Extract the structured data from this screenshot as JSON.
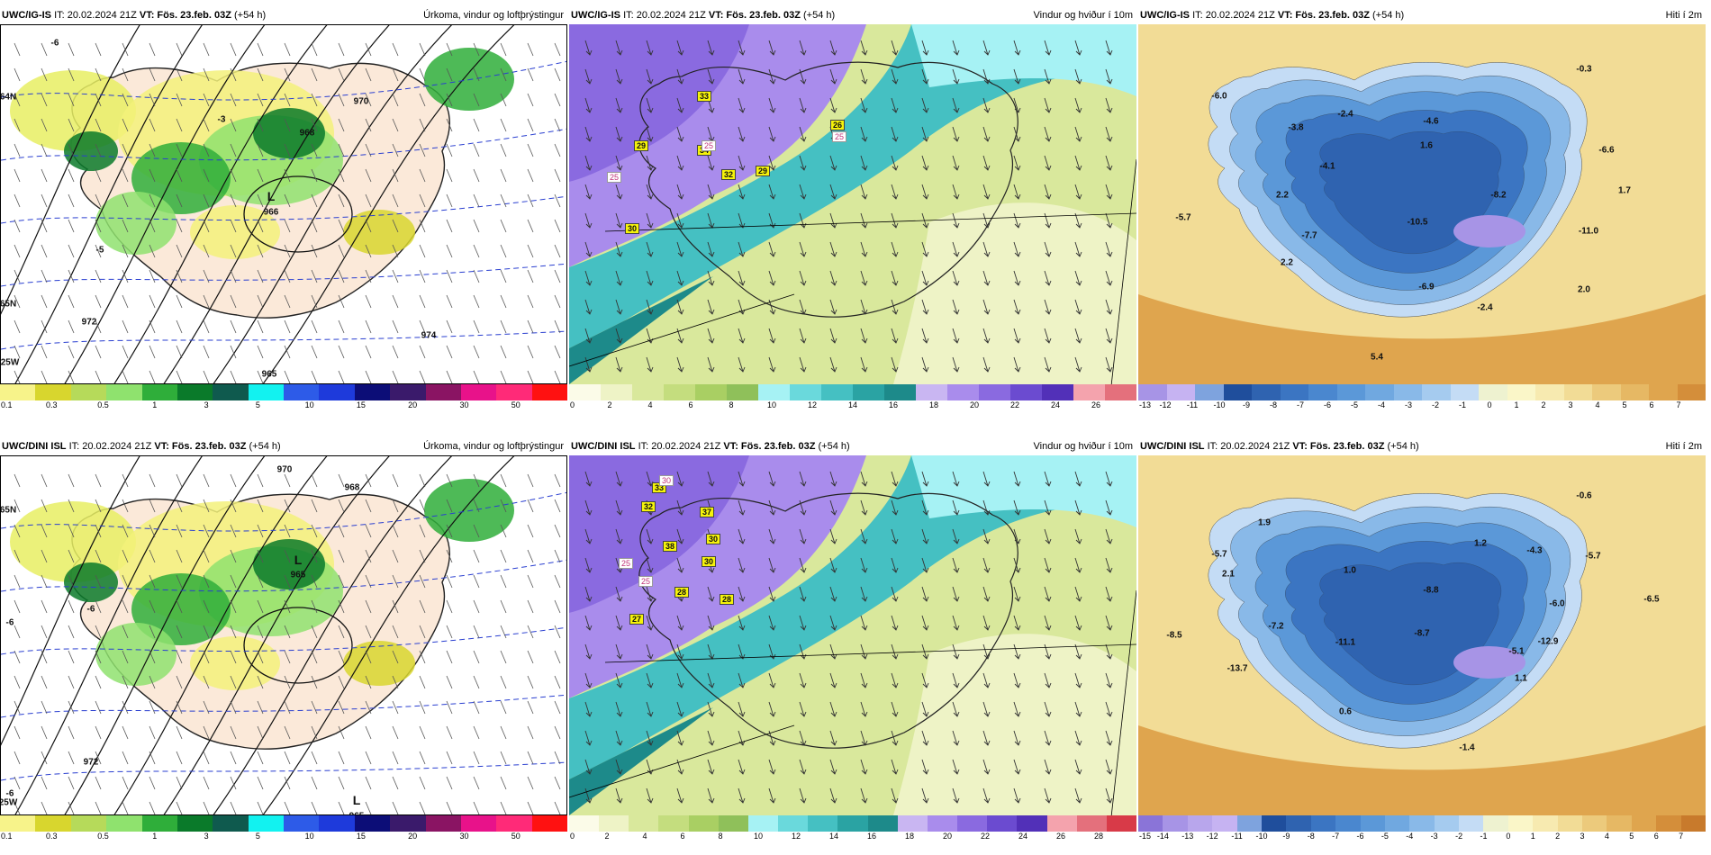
{
  "rows": [
    {
      "panels": [
        {
          "kind": "precip",
          "model": "UWC/IG-IS",
          "issue": "IT: 20.02.2024 21Z",
          "valid": "VT: Fös. 23.feb. 03Z",
          "lead": "(+54 h)",
          "title": "Úrkoma, vindur og loftþrýstingur",
          "colors": [
            "#f7f38a",
            "#d8d62e",
            "#b6da5a",
            "#8fe26e",
            "#2fae3a",
            "#0a7a2a",
            "#0f5a4e",
            "#12f2f0",
            "#2d5be8",
            "#1e3adb",
            "#0c0d77",
            "#3a1a6b",
            "#8a1463",
            "#e8128a",
            "#ff2a78",
            "#ff1111"
          ],
          "ticks": [
            "0.1",
            "0.3",
            "0.5",
            "1",
            "3",
            "5",
            "10",
            "15",
            "20",
            "30",
            "50"
          ],
          "labels": [
            {
              "text": "L",
              "cls": "low"
            },
            {
              "text": "966"
            },
            {
              "text": "965"
            },
            {
              "text": "968"
            },
            {
              "text": "970"
            },
            {
              "text": "972"
            },
            {
              "text": "974"
            },
            {
              "text": "-5"
            },
            {
              "text": "-6"
            },
            {
              "text": "-3"
            },
            {
              "text": "64N"
            },
            {
              "text": "65N"
            },
            {
              "text": "25W"
            }
          ]
        },
        {
          "kind": "wind",
          "model": "UWC/IG-IS",
          "issue": "IT: 20.02.2024 21Z",
          "valid": "VT: Fös. 23.feb. 03Z",
          "lead": "(+54 h)",
          "title": "Vindur og hviður í 10m",
          "colors": [
            "#fbfbe8",
            "#eef3c6",
            "#d9e89c",
            "#c4dd7e",
            "#a9cf63",
            "#8fc05a",
            "#a6f2f4",
            "#6ad9dc",
            "#45c0c2",
            "#2aa3a3",
            "#1d8a8a",
            "#c9b6f2",
            "#a98cec",
            "#8a6ae0",
            "#6b4bd0",
            "#5230b8",
            "#f4a3ad",
            "#e4707c"
          ],
          "ticks": [
            "0",
            "2",
            "4",
            "6",
            "8",
            "10",
            "12",
            "14",
            "16",
            "18",
            "20",
            "22",
            "24",
            "26"
          ],
          "labels": [
            {
              "text": "33",
              "cls": "badge"
            },
            {
              "text": "29",
              "cls": "badge"
            },
            {
              "text": "34",
              "cls": "badge"
            },
            {
              "text": "32",
              "cls": "badge"
            },
            {
              "text": "29",
              "cls": "badge"
            },
            {
              "text": "26",
              "cls": "badge"
            },
            {
              "text": "30",
              "cls": "badge"
            },
            {
              "text": "25",
              "cls": "white"
            },
            {
              "text": "25",
              "cls": "white"
            },
            {
              "text": "25",
              "cls": "white"
            }
          ]
        },
        {
          "kind": "temp",
          "model": "UWC/IG-IS",
          "issue": "IT: 20.02.2024 21Z",
          "valid": "VT: Fös. 23.feb. 03Z",
          "lead": "(+54 h)",
          "title": "Hiti í 2m",
          "colors": [
            "#a794e6",
            "#c6b3f2",
            "#7ea3de",
            "#1f4e9c",
            "#2f63b0",
            "#3b75c2",
            "#4a87cf",
            "#5b98d8",
            "#70a8e0",
            "#89b9e8",
            "#a5cbef",
            "#c4dcf5",
            "#eef2d0",
            "#faf6c8",
            "#f7eab0",
            "#f2dc96",
            "#ecca7c",
            "#e6b864",
            "#dfa54e",
            "#d48e3a"
          ],
          "ticks": [
            "-13",
            "-12",
            "-11",
            "-10",
            "-9",
            "-8",
            "-7",
            "-6",
            "-5",
            "-4",
            "-3",
            "-2",
            "-1",
            "0",
            "1",
            "2",
            "3",
            "4",
            "5",
            "6",
            "7"
          ],
          "labels": [
            {
              "text": "-6.0"
            },
            {
              "text": "-3.8"
            },
            {
              "text": "-2.4"
            },
            {
              "text": "-4.6"
            },
            {
              "text": "-0.3"
            },
            {
              "text": "-6.6"
            },
            {
              "text": "1.6"
            },
            {
              "text": "-4.1"
            },
            {
              "text": "2.2"
            },
            {
              "text": "-8.2"
            },
            {
              "text": "1.7"
            },
            {
              "text": "-5.7"
            },
            {
              "text": "-7.7"
            },
            {
              "text": "-10.5"
            },
            {
              "text": "-11.0"
            },
            {
              "text": "2.2"
            },
            {
              "text": "-6.9"
            },
            {
              "text": "-2.4"
            },
            {
              "text": "2.0"
            },
            {
              "text": "5.4"
            }
          ]
        }
      ]
    },
    {
      "panels": [
        {
          "kind": "precip",
          "model": "UWC/DINI ISL",
          "issue": "IT: 20.02.2024 21Z",
          "valid": "VT: Fös. 23.feb. 03Z",
          "lead": "(+54 h)",
          "title": "Úrkoma, vindur og loftþrýstingur",
          "colors": [
            "#f7f38a",
            "#d8d62e",
            "#b6da5a",
            "#8fe26e",
            "#2fae3a",
            "#0a7a2a",
            "#0f5a4e",
            "#12f2f0",
            "#2d5be8",
            "#1e3adb",
            "#0c0d77",
            "#3a1a6b",
            "#8a1463",
            "#e8128a",
            "#ff2a78",
            "#ff1111"
          ],
          "ticks": [
            "0.1",
            "0.3",
            "0.5",
            "1",
            "3",
            "5",
            "10",
            "15",
            "20",
            "30",
            "50"
          ],
          "labels": [
            {
              "text": "L",
              "cls": "low"
            },
            {
              "text": "965"
            },
            {
              "text": "L",
              "cls": "low"
            },
            {
              "text": "965"
            },
            {
              "text": "968"
            },
            {
              "text": "970"
            },
            {
              "text": "972"
            },
            {
              "text": "-6"
            },
            {
              "text": "-6"
            },
            {
              "text": "-6"
            },
            {
              "text": "65N"
            },
            {
              "text": "25W"
            }
          ]
        },
        {
          "kind": "wind",
          "model": "UWC/DINI ISL",
          "issue": "IT: 20.02.2024 21Z",
          "valid": "VT: Fös. 23.feb. 03Z",
          "lead": "(+54 h)",
          "title": "Vindur og hviður í 10m",
          "colors": [
            "#fbfbe8",
            "#eef3c6",
            "#d9e89c",
            "#c4dd7e",
            "#a9cf63",
            "#8fc05a",
            "#a6f2f4",
            "#6ad9dc",
            "#45c0c2",
            "#2aa3a3",
            "#1d8a8a",
            "#c9b6f2",
            "#a98cec",
            "#8a6ae0",
            "#6b4bd0",
            "#5230b8",
            "#f4a3ad",
            "#e4707c",
            "#d83a48"
          ],
          "ticks": [
            "0",
            "2",
            "4",
            "6",
            "8",
            "10",
            "12",
            "14",
            "16",
            "18",
            "20",
            "22",
            "24",
            "26",
            "28"
          ],
          "labels": [
            {
              "text": "33",
              "cls": "badge"
            },
            {
              "text": "32",
              "cls": "badge"
            },
            {
              "text": "37",
              "cls": "badge"
            },
            {
              "text": "30",
              "cls": "badge"
            },
            {
              "text": "38",
              "cls": "badge"
            },
            {
              "text": "30",
              "cls": "badge"
            },
            {
              "text": "28",
              "cls": "badge"
            },
            {
              "text": "28",
              "cls": "badge"
            },
            {
              "text": "27",
              "cls": "badge"
            },
            {
              "text": "30",
              "cls": "white"
            },
            {
              "text": "25",
              "cls": "white"
            },
            {
              "text": "25",
              "cls": "white"
            }
          ]
        },
        {
          "kind": "temp",
          "model": "UWC/DINI ISL",
          "issue": "IT: 20.02.2024 21Z",
          "valid": "VT: Fös. 23.feb. 03Z",
          "lead": "(+54 h)",
          "title": "Hiti í 2m",
          "colors": [
            "#8a74d8",
            "#a794e6",
            "#b8a6ec",
            "#c6b3f2",
            "#7ea3de",
            "#1f4e9c",
            "#2f63b0",
            "#3b75c2",
            "#4a87cf",
            "#5b98d8",
            "#70a8e0",
            "#89b9e8",
            "#a5cbef",
            "#c4dcf5",
            "#eef2d0",
            "#faf6c8",
            "#f7eab0",
            "#f2dc96",
            "#ecca7c",
            "#e6b864",
            "#dfa54e",
            "#d48e3a",
            "#c87a2c"
          ],
          "ticks": [
            "-15",
            "-14",
            "-13",
            "-12",
            "-11",
            "-10",
            "-9",
            "-8",
            "-7",
            "-6",
            "-5",
            "-4",
            "-3",
            "-2",
            "-1",
            "0",
            "1",
            "2",
            "3",
            "4",
            "5",
            "6",
            "7"
          ],
          "labels": [
            {
              "text": "-0.6"
            },
            {
              "text": "-5.7"
            },
            {
              "text": "1.9"
            },
            {
              "text": "1.2"
            },
            {
              "text": "-4.3"
            },
            {
              "text": "-5.7"
            },
            {
              "text": "-6.5"
            },
            {
              "text": "2.1"
            },
            {
              "text": "1.0"
            },
            {
              "text": "-8.8"
            },
            {
              "text": "-6.0"
            },
            {
              "text": "-7.2"
            },
            {
              "text": "-8.5"
            },
            {
              "text": "-11.1"
            },
            {
              "text": "-8.7"
            },
            {
              "text": "-12.9"
            },
            {
              "text": "-5.1"
            },
            {
              "text": "-13.7"
            },
            {
              "text": "1.1"
            },
            {
              "text": "0.6"
            },
            {
              "text": "-1.4"
            }
          ]
        }
      ]
    }
  ]
}
